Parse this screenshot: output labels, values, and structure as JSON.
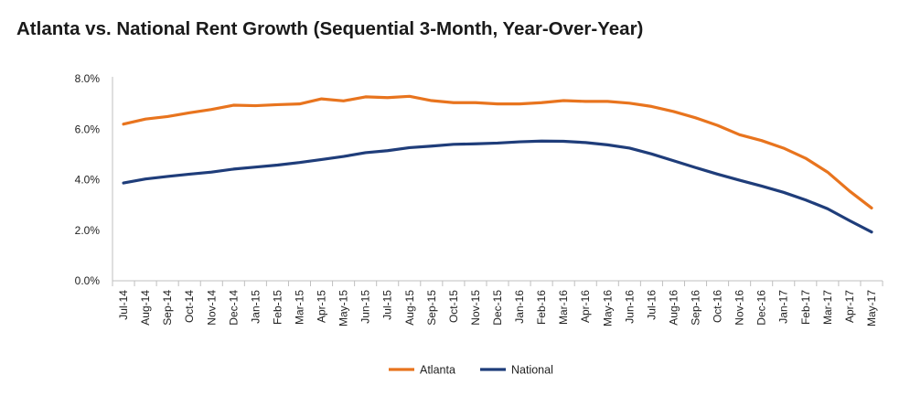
{
  "chart_data": {
    "type": "line",
    "title": "Atlanta vs. National Rent Growth (Sequential 3-Month, Year-Over-Year)",
    "xlabel": "",
    "ylabel": "",
    "categories": [
      "Jul-14",
      "Aug-14",
      "Sep-14",
      "Oct-14",
      "Nov-14",
      "Dec-14",
      "Jan-15",
      "Feb-15",
      "Mar-15",
      "Apr-15",
      "May-15",
      "Jun-15",
      "Jul-15",
      "Aug-15",
      "Sep-15",
      "Oct-15",
      "Nov-15",
      "Dec-15",
      "Jan-16",
      "Feb-16",
      "Mar-16",
      "Apr-16",
      "May-16",
      "Jun-16",
      "Jul-16",
      "Aug-16",
      "Sep-16",
      "Oct-16",
      "Nov-16",
      "Dec-16",
      "Jan-17",
      "Feb-17",
      "Mar-17",
      "Apr-17",
      "May-17"
    ],
    "series": [
      {
        "name": "Atlanta",
        "color": "#E8741E",
        "values": [
          6.2,
          6.4,
          6.5,
          6.65,
          6.78,
          6.95,
          6.93,
          6.97,
          7.0,
          7.2,
          7.12,
          7.28,
          7.25,
          7.3,
          7.13,
          7.05,
          7.05,
          7.0,
          7.0,
          7.05,
          7.13,
          7.1,
          7.1,
          7.03,
          6.9,
          6.7,
          6.45,
          6.15,
          5.78,
          5.55,
          5.25,
          4.85,
          4.3,
          3.55,
          2.88
        ]
      },
      {
        "name": "National",
        "color": "#1F3D7A",
        "values": [
          3.87,
          4.03,
          4.13,
          4.22,
          4.3,
          4.42,
          4.5,
          4.58,
          4.68,
          4.8,
          4.92,
          5.07,
          5.15,
          5.27,
          5.33,
          5.4,
          5.42,
          5.45,
          5.5,
          5.53,
          5.52,
          5.47,
          5.38,
          5.25,
          5.02,
          4.75,
          4.48,
          4.22,
          3.98,
          3.75,
          3.5,
          3.2,
          2.85,
          2.38,
          1.93
        ]
      }
    ],
    "yticks": [
      "0.0%",
      "2.0%",
      "4.0%",
      "6.0%",
      "8.0%"
    ],
    "ylim": [
      0,
      8
    ],
    "grid": false,
    "legend": "bottom-center"
  }
}
